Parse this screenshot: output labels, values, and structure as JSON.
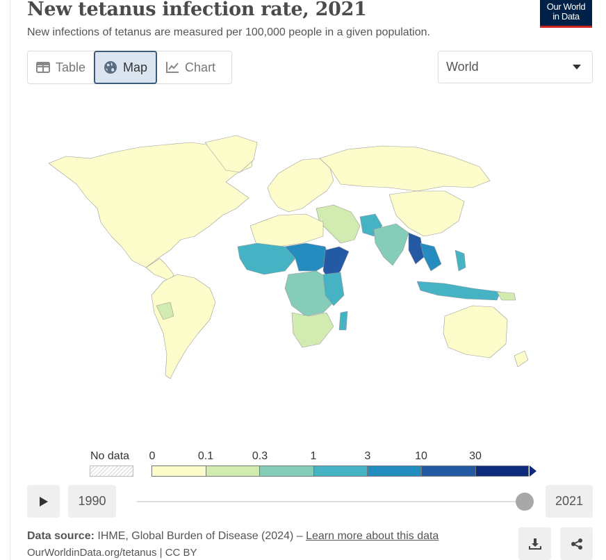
{
  "header": {
    "title": "New tetanus infection rate, 2021",
    "subtitle": "New infections of tetanus are measured per 100,000 people in a given population.",
    "logo_line1": "Our World",
    "logo_line2": "in Data"
  },
  "tabs": [
    {
      "label": "Table",
      "icon": "table-icon",
      "active": false
    },
    {
      "label": "Map",
      "icon": "globe-icon",
      "active": true
    },
    {
      "label": "Chart",
      "icon": "line-chart-icon",
      "active": false
    }
  ],
  "region_select": {
    "value": "World",
    "icon": "chevron-down-icon"
  },
  "legend": {
    "no_data_label": "No data",
    "thresholds": [
      "0",
      "0.1",
      "0.3",
      "1",
      "3",
      "10",
      "30"
    ],
    "colors": [
      "#fdfdcb",
      "#d1ebb1",
      "#86cdb9",
      "#45b3c4",
      "#258cc0",
      "#2459a4",
      "#0e2a7a"
    ]
  },
  "timeline": {
    "start_year": "1990",
    "end_year": "2021",
    "position": 1.0,
    "play_icon": "play-icon"
  },
  "footer": {
    "source_label": "Data source:",
    "source_text": "IHME, Global Burden of Disease (2024) –",
    "learn_more": "Learn more about this data",
    "url": "OurWorldinData.org/tetanus | CC BY",
    "download_icon": "download-icon",
    "share_icon": "share-icon"
  }
}
